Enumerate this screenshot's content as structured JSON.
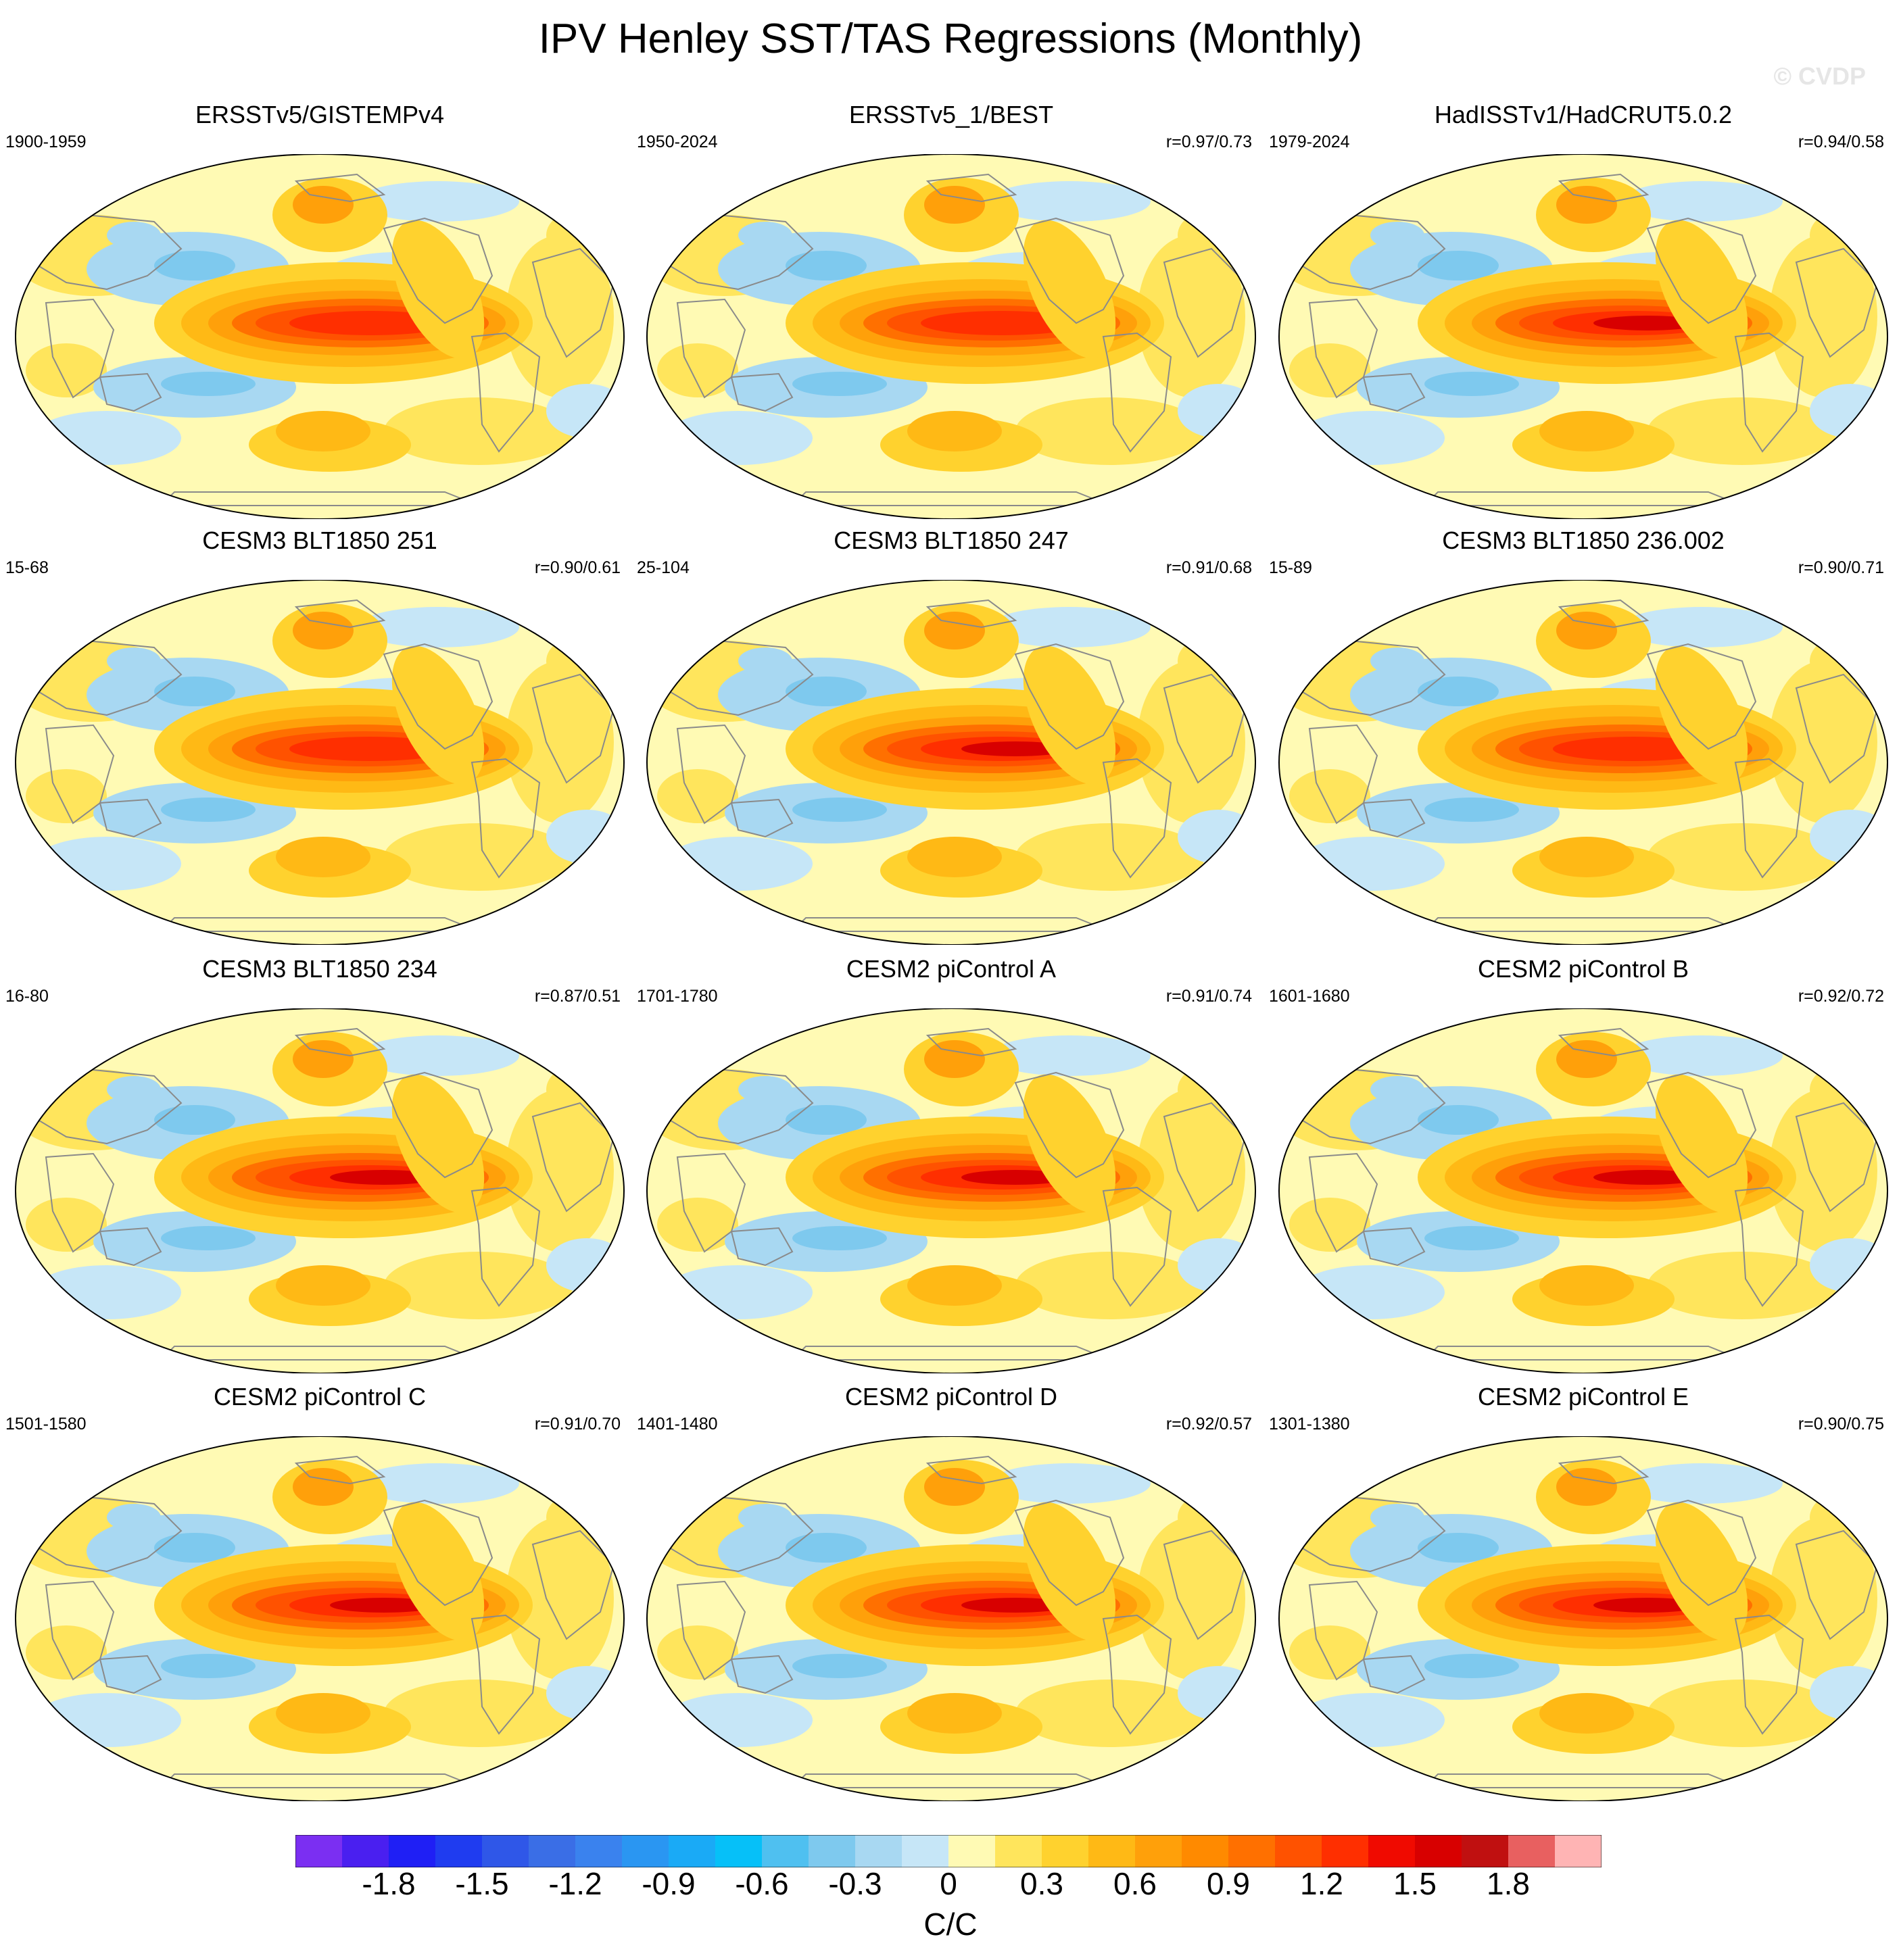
{
  "figure": {
    "title": "IPV Henley SST/TAS Regressions (Monthly)",
    "watermark": "© CVDP"
  },
  "panels": [
    {
      "title": "ERSSTv5/GISTEMPv4",
      "period": "1900-1959",
      "corr": "",
      "max_warm": 1.3,
      "scheme": "obs"
    },
    {
      "title": "ERSSTv5_1/BEST",
      "period": "1950-2024",
      "corr": "r=0.97/0.73",
      "max_warm": 1.4,
      "scheme": "obs"
    },
    {
      "title": "HadISSTv1/HadCRUT5.0.2",
      "period": "1979-2024",
      "corr": "r=0.94/0.58",
      "max_warm": 1.5,
      "scheme": "obs"
    },
    {
      "title": "CESM3 BLT1850 251",
      "period": "15-68",
      "corr": "r=0.90/0.61",
      "max_warm": 1.4,
      "scheme": "model"
    },
    {
      "title": "CESM3 BLT1850 247",
      "period": "25-104",
      "corr": "r=0.91/0.68",
      "max_warm": 1.5,
      "scheme": "model"
    },
    {
      "title": "CESM3 BLT1850 236.002",
      "period": "15-89",
      "corr": "r=0.90/0.71",
      "max_warm": 1.4,
      "scheme": "model"
    },
    {
      "title": "CESM3 BLT1850 234",
      "period": "16-80",
      "corr": "r=0.87/0.51",
      "max_warm": 1.5,
      "scheme": "model"
    },
    {
      "title": "CESM2 piControl A",
      "period": "1701-1780",
      "corr": "r=0.91/0.74",
      "max_warm": 1.5,
      "scheme": "model"
    },
    {
      "title": "CESM2 piControl B",
      "period": "1601-1680",
      "corr": "r=0.92/0.72",
      "max_warm": 1.5,
      "scheme": "model"
    },
    {
      "title": "CESM2 piControl C",
      "period": "1501-1580",
      "corr": "r=0.91/0.70",
      "max_warm": 1.5,
      "scheme": "model"
    },
    {
      "title": "CESM2 piControl D",
      "period": "1401-1480",
      "corr": "r=0.92/0.57",
      "max_warm": 1.5,
      "scheme": "model"
    },
    {
      "title": "CESM2 piControl E",
      "period": "1301-1380",
      "corr": "r=0.90/0.75",
      "max_warm": 1.5,
      "scheme": "model"
    }
  ],
  "colorbar": {
    "units": "C/C",
    "labels": [
      "-1.8",
      "-1.5",
      "-1.2",
      "-0.9",
      "-0.6",
      "-0.3",
      "0",
      "0.3",
      "0.6",
      "0.9",
      "1.2",
      "1.5",
      "1.8"
    ],
    "label_values": [
      -1.8,
      -1.5,
      -1.2,
      -0.9,
      -0.6,
      -0.3,
      0,
      0.3,
      0.6,
      0.9,
      1.2,
      1.5,
      1.8
    ],
    "boundaries": [
      -2.1,
      -1.95,
      -1.8,
      -1.65,
      -1.5,
      -1.35,
      -1.2,
      -1.05,
      -0.9,
      -0.75,
      -0.6,
      -0.45,
      -0.3,
      -0.15,
      0,
      0.15,
      0.3,
      0.45,
      0.6,
      0.75,
      0.9,
      1.05,
      1.2,
      1.35,
      1.5,
      1.65,
      1.8,
      1.95,
      2.1
    ],
    "colors": [
      "#7b2ff2",
      "#4a1ff0",
      "#1f1ff5",
      "#1f3cf0",
      "#2f57e8",
      "#3a6ee6",
      "#3a82ee",
      "#2a96f2",
      "#1aaaf6",
      "#06c0f8",
      "#4fc0f0",
      "#7ec9ee",
      "#a8d8f2",
      "#c6e6f7",
      "#fffab4",
      "#ffe55c",
      "#ffd22e",
      "#ffb915",
      "#ffa00a",
      "#ff8a00",
      "#ff7000",
      "#ff5200",
      "#ff2f00",
      "#f00a00",
      "#d80000",
      "#c01010",
      "#e86060",
      "#ffb4b4"
    ]
  }
}
